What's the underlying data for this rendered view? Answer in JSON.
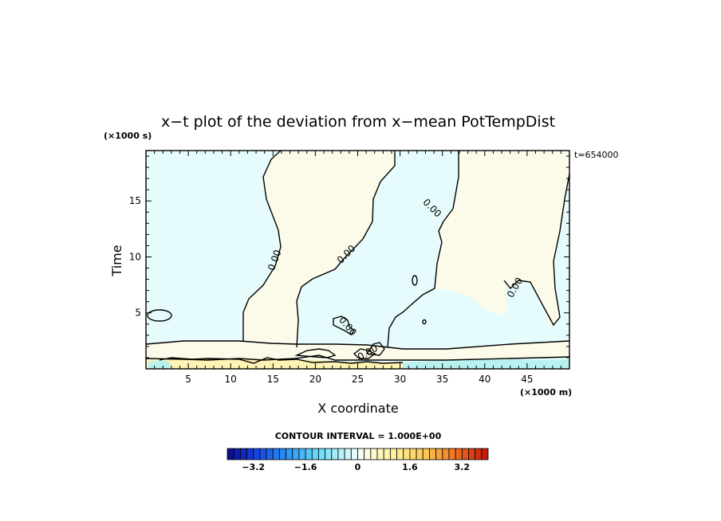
{
  "chart_data": {
    "type": "heatmap",
    "title": "x−t plot of the deviation from x−mean PotTempDist",
    "xlabel": "X coordinate",
    "ylabel": "Time",
    "x_unit": "(×1000 m)",
    "y_unit": "(×1000 s)",
    "time_stamp": "t=654000",
    "xlim": [
      0,
      50
    ],
    "ylim": [
      0,
      19.5
    ],
    "x_ticks": [
      5,
      10,
      15,
      20,
      25,
      30,
      35,
      40,
      45
    ],
    "y_ticks": [
      5,
      10,
      15
    ],
    "contour_label": "0.00",
    "contour_interval_text": "CONTOUR INTERVAL = 1.000E+00",
    "colorbar_min": -4.0,
    "colorbar_max": 4.0,
    "colorbar_ticks": [
      -3.2,
      -1.6,
      0,
      1.6,
      3.2
    ],
    "colorbar_tick_labels": [
      "−3.2",
      "−1.6",
      "0",
      "1.6",
      "3.2"
    ],
    "colors": {
      "negative_near_zero": "#e6fcfc",
      "positive_near_zero": "#fcfbea",
      "slightly_negative": "#b8f2f0",
      "slightly_positive": "#fdf3b2",
      "contour": "#000000"
    }
  }
}
